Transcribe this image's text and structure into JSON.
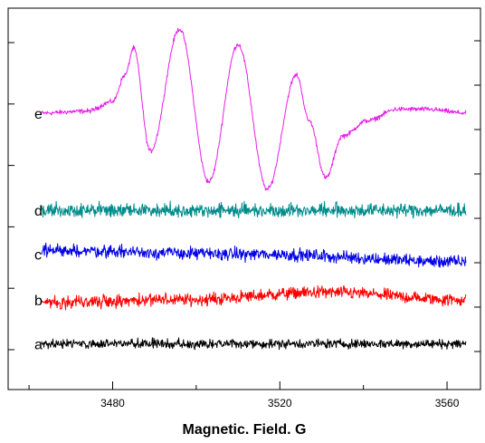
{
  "chart_data": {
    "type": "line",
    "title": "",
    "xlabel": "Magnetic. Field. G",
    "ylabel": "",
    "xlim": [
      3455,
      3568
    ],
    "xticks": [
      3480,
      3520,
      3560
    ],
    "xtick_labels": [
      "3480",
      "3520",
      "3560"
    ],
    "x_minor_ticks": [
      3460,
      3500,
      3540
    ],
    "y_ticks_left": 6,
    "y_ticks_right": 8,
    "grid": false,
    "legend": "none",
    "curve_labels_position": "left of each trace",
    "x_start": 3463,
    "x_end": 3564.5,
    "series": [
      {
        "name": "e",
        "color": "#e81ee8",
        "baseline": 0.725,
        "noise": 0.006,
        "signal": {
          "x": [
            3463,
            3474,
            3480,
            3483,
            3485,
            3489,
            3496,
            3503,
            3510,
            3517,
            3524,
            3527,
            3531,
            3535,
            3541,
            3548,
            3555,
            3564.5
          ],
          "y": [
            0,
            0.005,
            0.03,
            0.1,
            0.17,
            -0.1,
            0.22,
            -0.18,
            0.18,
            -0.2,
            0.1,
            -0.02,
            -0.17,
            -0.06,
            -0.02,
            0.01,
            0.01,
            0.0
          ]
        }
      },
      {
        "name": "d",
        "color": "#008b8b",
        "baseline": 0.47,
        "noise": 0.018
      },
      {
        "name": "c",
        "color": "#0000e6",
        "baseline": 0.355,
        "noise": 0.016,
        "drift": [
          0.01,
          0.0,
          -0.02
        ]
      },
      {
        "name": "b",
        "color": "#ff0000",
        "baseline": 0.235,
        "noise": 0.016,
        "drift": [
          -0.005,
          0.0,
          0.02,
          0.0
        ]
      },
      {
        "name": "a",
        "color": "#000000",
        "baseline": 0.12,
        "noise": 0.012
      }
    ]
  }
}
